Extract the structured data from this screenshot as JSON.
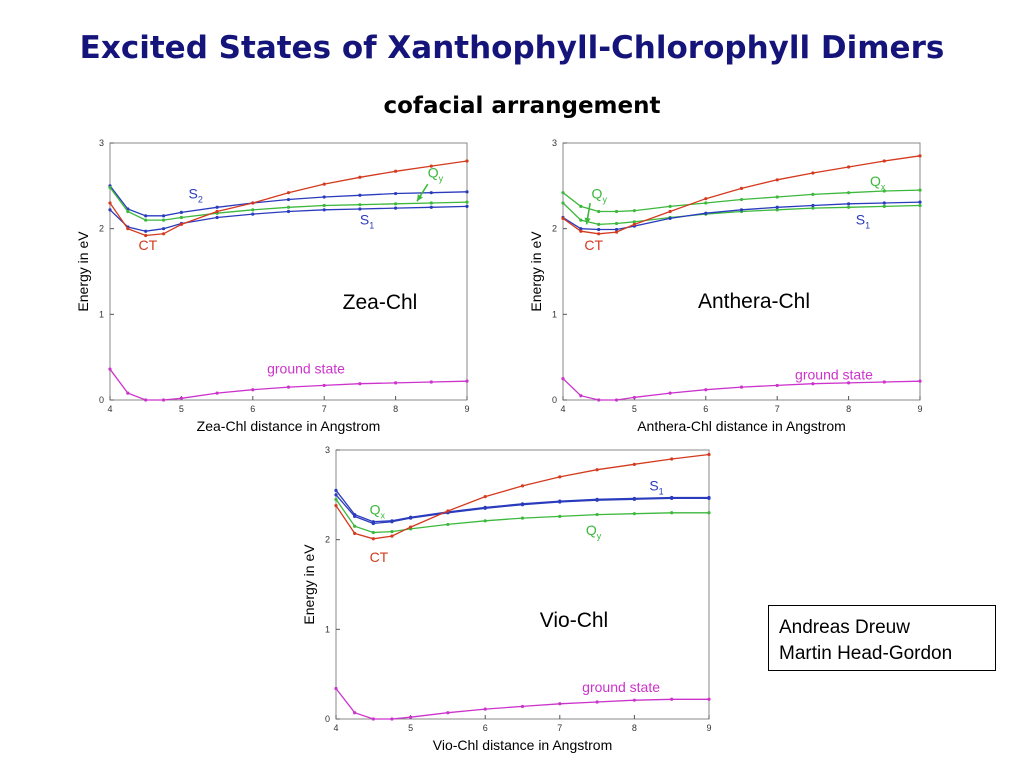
{
  "slide": {
    "title": "Excited States of Xanthophyll-Chlorophyll Dimers",
    "subtitle": "cofacial arrangement",
    "authors": [
      "Andreas Dreuw",
      "Martin Head-Gordon"
    ]
  },
  "colors": {
    "title": "#14147a",
    "S": "#2a3bbd",
    "Q": "#3cb83c",
    "CT": "#d43a1e",
    "ground": "#cc33cc",
    "axis": "#888888"
  },
  "chart_data": [
    {
      "type": "line",
      "id": "zea",
      "panel_label": "Zea-Chl",
      "xlabel": "Zea-Chl distance in Angstrom",
      "ylabel": "Energy in eV",
      "xlim": [
        4,
        9
      ],
      "ylim": [
        0,
        3
      ],
      "xticks": [
        4,
        5,
        6,
        7,
        8,
        9
      ],
      "yticks": [
        0,
        1,
        2,
        3
      ],
      "grid": false,
      "x": [
        4,
        4.25,
        4.5,
        4.75,
        5,
        5.5,
        6,
        6.5,
        7,
        7.5,
        8,
        8.5,
        9
      ],
      "series": [
        {
          "key": "S",
          "values": [
            2.5,
            2.23,
            2.15,
            2.15,
            2.19,
            2.25,
            2.3,
            2.34,
            2.37,
            2.39,
            2.41,
            2.42,
            2.43
          ]
        },
        {
          "key": "S",
          "values": [
            2.22,
            2.02,
            1.97,
            2.0,
            2.06,
            2.13,
            2.17,
            2.2,
            2.22,
            2.23,
            2.24,
            2.25,
            2.26
          ]
        },
        {
          "key": "Q",
          "values": [
            2.48,
            2.2,
            2.1,
            2.1,
            2.13,
            2.18,
            2.22,
            2.25,
            2.27,
            2.28,
            2.29,
            2.3,
            2.31
          ]
        },
        {
          "key": "CT",
          "values": [
            2.3,
            2.0,
            1.92,
            1.94,
            2.05,
            2.2,
            2.3,
            2.42,
            2.52,
            2.6,
            2.67,
            2.73,
            2.79
          ]
        },
        {
          "key": "ground",
          "values": [
            0.36,
            0.08,
            0.0,
            0.0,
            0.02,
            0.08,
            0.12,
            0.15,
            0.17,
            0.19,
            0.2,
            0.21,
            0.22
          ]
        }
      ],
      "annotations": [
        {
          "text": "S",
          "sub": "2",
          "color": "S",
          "at": [
            5.1,
            2.35
          ]
        },
        {
          "text": "S",
          "sub": "1",
          "color": "S",
          "at": [
            7.5,
            2.05
          ]
        },
        {
          "text": "Q",
          "sub": "y",
          "color": "Q",
          "at": [
            8.45,
            2.6
          ]
        },
        {
          "text": "CT",
          "sub": "",
          "color": "CT",
          "at": [
            4.4,
            1.75
          ]
        },
        {
          "text": "ground state",
          "sub": "",
          "color": "ground",
          "at": [
            6.2,
            0.31
          ]
        }
      ],
      "arrows": [
        {
          "color": "Q",
          "from": [
            8.45,
            2.52
          ],
          "to": [
            8.3,
            2.32
          ]
        }
      ]
    },
    {
      "type": "line",
      "id": "anthera",
      "panel_label": "Anthera-Chl",
      "xlabel": "Anthera-Chl distance in Angstrom",
      "ylabel": "Energy in eV",
      "xlim": [
        4,
        9
      ],
      "ylim": [
        0,
        3
      ],
      "xticks": [
        4,
        5,
        6,
        7,
        8,
        9
      ],
      "yticks": [
        0,
        1,
        2,
        3
      ],
      "grid": false,
      "x": [
        4,
        4.25,
        4.5,
        4.75,
        5,
        5.5,
        6,
        6.5,
        7,
        7.5,
        8,
        8.5,
        9
      ],
      "series": [
        {
          "key": "Q",
          "values": [
            2.42,
            2.26,
            2.2,
            2.2,
            2.21,
            2.26,
            2.3,
            2.34,
            2.37,
            2.4,
            2.42,
            2.44,
            2.45
          ]
        },
        {
          "key": "Q",
          "values": [
            2.3,
            2.1,
            2.05,
            2.06,
            2.08,
            2.13,
            2.17,
            2.2,
            2.22,
            2.24,
            2.25,
            2.26,
            2.27
          ]
        },
        {
          "key": "S",
          "values": [
            2.13,
            2.0,
            1.99,
            1.99,
            2.03,
            2.12,
            2.18,
            2.22,
            2.25,
            2.27,
            2.29,
            2.3,
            2.31
          ]
        },
        {
          "key": "CT",
          "values": [
            2.12,
            1.97,
            1.94,
            1.96,
            2.05,
            2.2,
            2.35,
            2.47,
            2.57,
            2.65,
            2.72,
            2.79,
            2.85
          ]
        },
        {
          "key": "ground",
          "values": [
            0.25,
            0.05,
            0.0,
            0.0,
            0.03,
            0.08,
            0.12,
            0.15,
            0.17,
            0.19,
            0.2,
            0.21,
            0.22
          ]
        }
      ],
      "annotations": [
        {
          "text": "Q",
          "sub": "y",
          "color": "Q",
          "at": [
            4.4,
            2.35
          ]
        },
        {
          "text": "Q",
          "sub": "x",
          "color": "Q",
          "at": [
            8.3,
            2.5
          ]
        },
        {
          "text": "S",
          "sub": "1",
          "color": "S",
          "at": [
            8.1,
            2.05
          ]
        },
        {
          "text": "CT",
          "sub": "",
          "color": "CT",
          "at": [
            4.3,
            1.75
          ]
        },
        {
          "text": "ground state",
          "sub": "",
          "color": "ground",
          "at": [
            7.25,
            0.24
          ]
        }
      ],
      "arrows": [
        {
          "color": "Q",
          "from": [
            4.38,
            2.3
          ],
          "to": [
            4.33,
            2.05
          ]
        }
      ]
    },
    {
      "type": "line",
      "id": "vio",
      "panel_label": "Vio-Chl",
      "xlabel": "Vio-Chl distance in Angstrom",
      "ylabel": "Energy in eV",
      "xlim": [
        4,
        9
      ],
      "ylim": [
        0,
        3
      ],
      "xticks": [
        4,
        5,
        6,
        7,
        8,
        9
      ],
      "yticks": [
        0,
        1,
        2,
        3
      ],
      "grid": false,
      "x": [
        4,
        4.25,
        4.5,
        4.75,
        5,
        5.5,
        6,
        6.5,
        7,
        7.5,
        8,
        8.5,
        9
      ],
      "series": [
        {
          "key": "S",
          "values": [
            2.55,
            2.28,
            2.2,
            2.21,
            2.25,
            2.31,
            2.36,
            2.4,
            2.43,
            2.45,
            2.46,
            2.47,
            2.47
          ]
        },
        {
          "key": "S",
          "values": [
            2.5,
            2.26,
            2.18,
            2.2,
            2.24,
            2.3,
            2.35,
            2.39,
            2.42,
            2.44,
            2.45,
            2.46,
            2.46
          ]
        },
        {
          "key": "Q",
          "values": [
            2.45,
            2.15,
            2.08,
            2.09,
            2.12,
            2.17,
            2.21,
            2.24,
            2.26,
            2.28,
            2.29,
            2.3,
            2.3
          ]
        },
        {
          "key": "CT",
          "values": [
            2.38,
            2.07,
            2.01,
            2.04,
            2.14,
            2.32,
            2.48,
            2.6,
            2.7,
            2.78,
            2.84,
            2.9,
            2.95
          ]
        },
        {
          "key": "ground",
          "values": [
            0.34,
            0.07,
            0.0,
            0.0,
            0.02,
            0.07,
            0.11,
            0.14,
            0.17,
            0.19,
            0.21,
            0.22,
            0.22
          ]
        }
      ],
      "annotations": [
        {
          "text": "Q",
          "sub": "x",
          "color": "Q",
          "at": [
            4.45,
            2.28
          ]
        },
        {
          "text": "S",
          "sub": "1",
          "color": "S",
          "at": [
            8.2,
            2.55
          ]
        },
        {
          "text": "Q",
          "sub": "y",
          "color": "Q",
          "at": [
            7.35,
            2.05
          ]
        },
        {
          "text": "CT",
          "sub": "",
          "color": "CT",
          "at": [
            4.45,
            1.75
          ]
        },
        {
          "text": "ground state",
          "sub": "",
          "color": "ground",
          "at": [
            7.3,
            0.3
          ]
        }
      ],
      "arrows": []
    }
  ]
}
